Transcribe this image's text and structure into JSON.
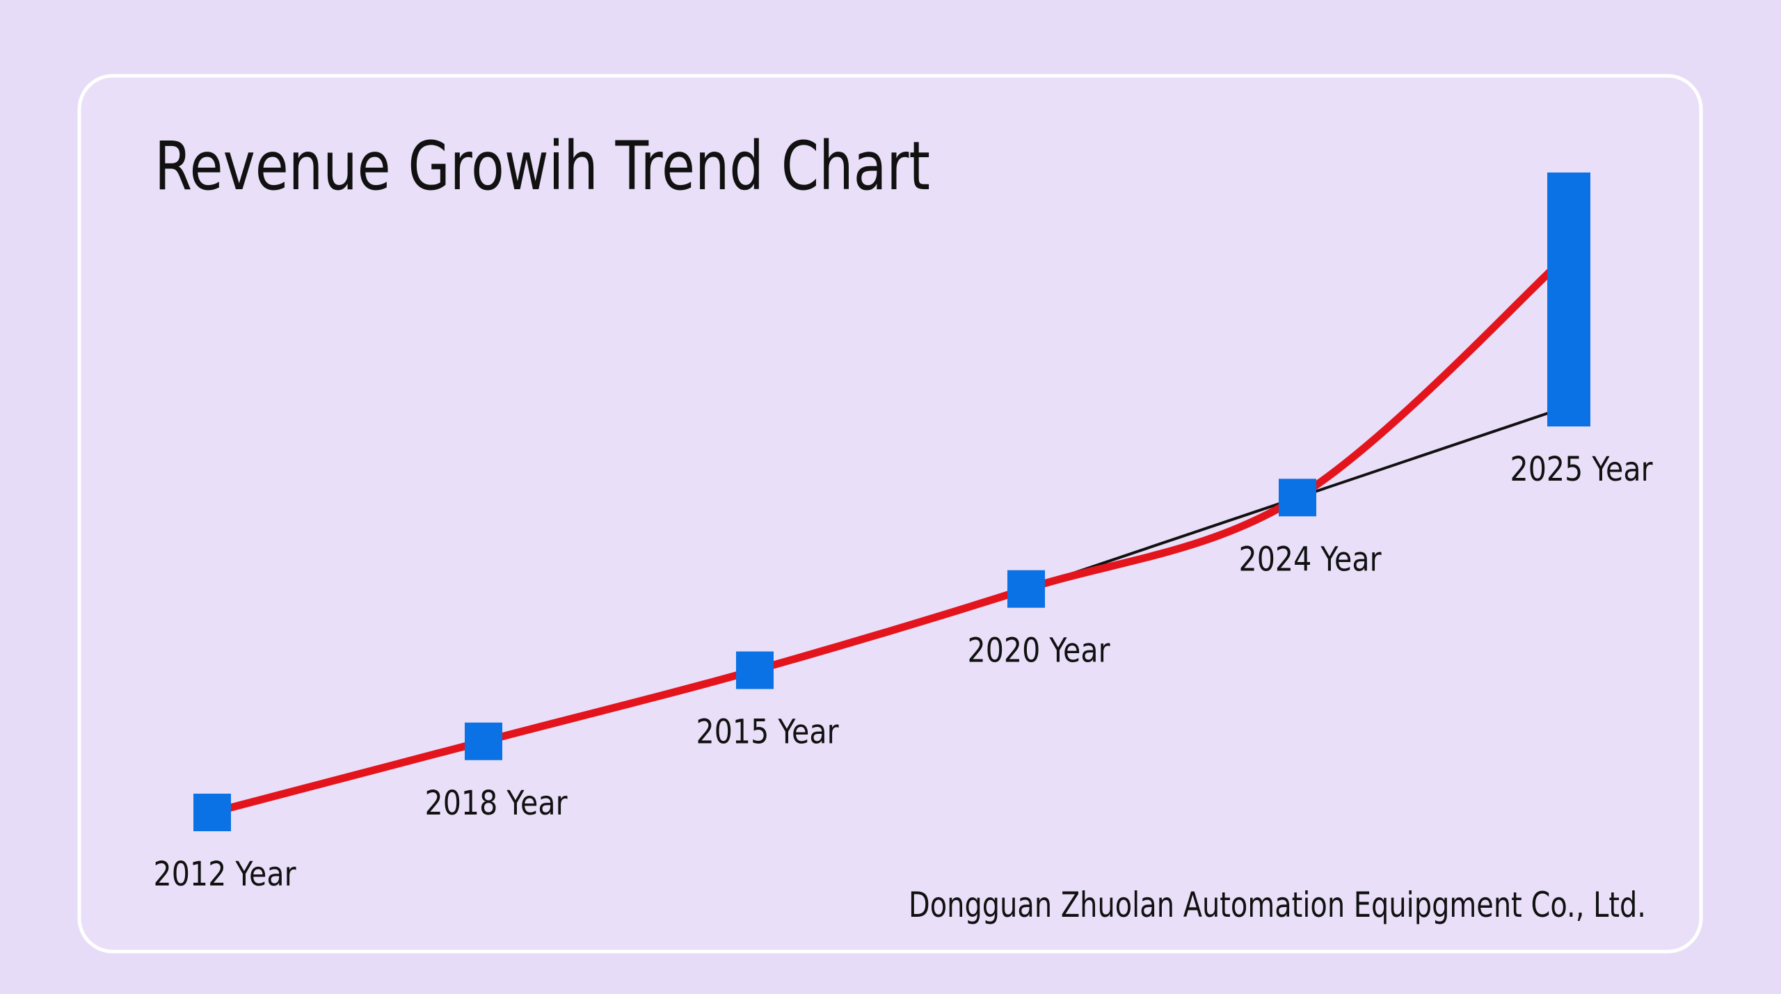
{
  "chart_data": {
    "type": "line",
    "title": "Revenue Growih Trend Chart",
    "footer": "Dongguan Zhuolan Automation Equipgment Co., Ltd.",
    "categories": [
      "2012 Year",
      "2018 Year",
      "2015 Year",
      "2020 Year",
      "2024 Year",
      "2025 Year"
    ],
    "series": [
      {
        "mark": "curve",
        "color": "#e3141c",
        "values": [
          10,
          17,
          24,
          32,
          41,
          65
        ]
      },
      {
        "mark": "line",
        "color": "#111111",
        "values": [
          10,
          17,
          24,
          32,
          41,
          50
        ]
      },
      {
        "mark": "square",
        "color": "#0b72e6",
        "values": [
          10,
          17,
          24,
          32,
          41,
          null
        ]
      },
      {
        "mark": "bar",
        "color": "#0b72e6",
        "values": [
          null,
          null,
          null,
          null,
          null,
          73
        ],
        "lows": [
          null,
          null,
          null,
          null,
          null,
          48
        ]
      }
    ]
  }
}
